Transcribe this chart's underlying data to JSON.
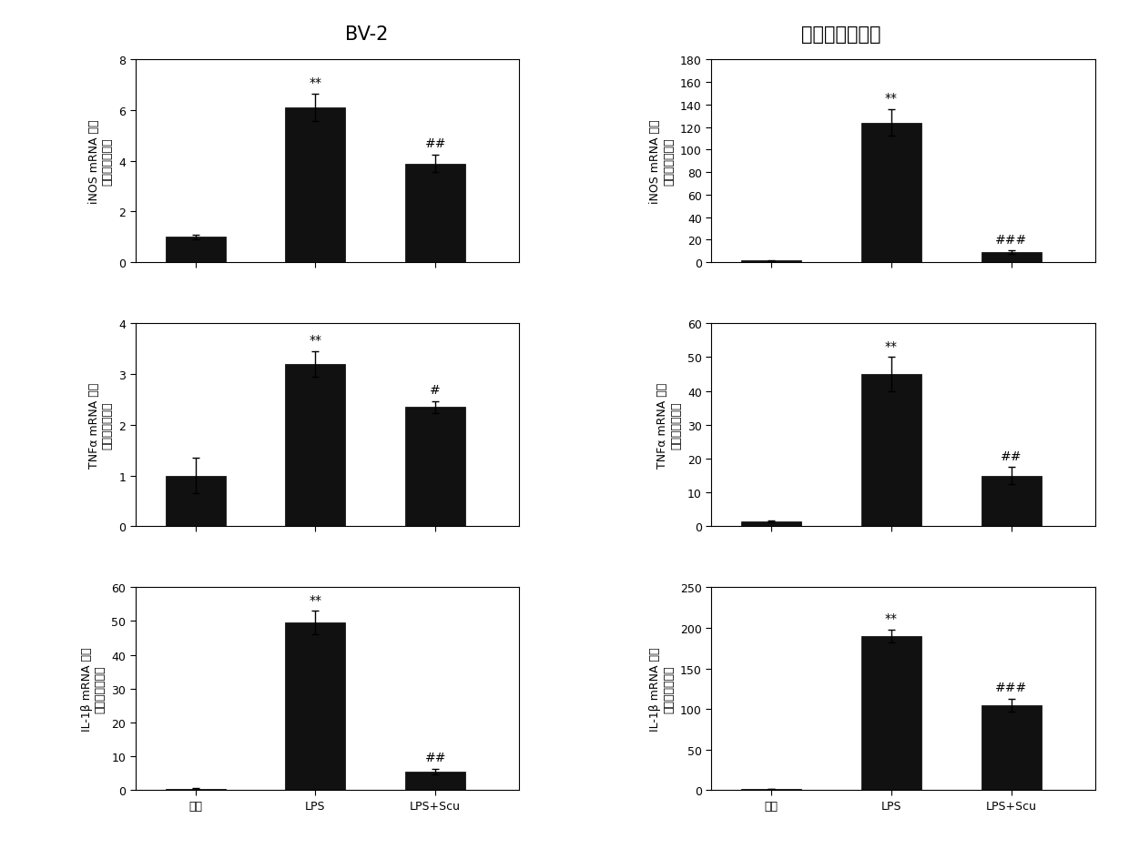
{
  "left_title": "BV-2",
  "right_title": "原代小胶质细胞",
  "x_labels": [
    "对照",
    "LPS",
    "LPS+Scu"
  ],
  "left_panels": [
    {
      "ylabel_main": "iNOS mRNA 表达",
      "ylabel_sub": "（对照的倍数）",
      "values": [
        1.0,
        6.1,
        3.9
      ],
      "errors": [
        0.08,
        0.55,
        0.35
      ],
      "ylim": [
        0,
        8
      ],
      "yticks": [
        0,
        2,
        4,
        6,
        8
      ],
      "sig_lps": "**",
      "sig_scu": "##"
    },
    {
      "ylabel_main": "TNFα mRNA 表达",
      "ylabel_sub": "（对照的倍数）",
      "values": [
        1.0,
        3.2,
        2.35
      ],
      "errors": [
        0.35,
        0.25,
        0.12
      ],
      "ylim": [
        0,
        4
      ],
      "yticks": [
        0,
        1,
        2,
        3,
        4
      ],
      "sig_lps": "**",
      "sig_scu": "#"
    },
    {
      "ylabel_main": "IL-1β mRNA 表达",
      "ylabel_sub": "（对照的倍数）",
      "values": [
        0.5,
        49.5,
        5.5
      ],
      "errors": [
        0.15,
        3.5,
        0.8
      ],
      "ylim": [
        0,
        60
      ],
      "yticks": [
        0,
        10,
        20,
        30,
        40,
        50,
        60
      ],
      "sig_lps": "**",
      "sig_scu": "##"
    }
  ],
  "right_panels": [
    {
      "ylabel_main": "iNOS mRNA 表达",
      "ylabel_sub": "（对照的倍数）",
      "values": [
        1.5,
        124.0,
        9.0
      ],
      "errors": [
        0.2,
        12.0,
        1.5
      ],
      "ylim": [
        0,
        180
      ],
      "yticks": [
        0,
        20,
        40,
        60,
        80,
        100,
        120,
        140,
        160,
        180
      ],
      "sig_lps": "**",
      "sig_scu": "###"
    },
    {
      "ylabel_main": "TNFα mRNA 表达",
      "ylabel_sub": "（对照的倍数）",
      "values": [
        1.5,
        45.0,
        15.0
      ],
      "errors": [
        0.2,
        5.0,
        2.5
      ],
      "ylim": [
        0,
        60
      ],
      "yticks": [
        0,
        10,
        20,
        30,
        40,
        50,
        60
      ],
      "sig_lps": "**",
      "sig_scu": "##"
    },
    {
      "ylabel_main": "IL-1β mRNA 表达",
      "ylabel_sub": "（对照犄倍数）",
      "values": [
        1.5,
        190.0,
        105.0
      ],
      "errors": [
        0.3,
        8.0,
        8.0
      ],
      "ylim": [
        0,
        250
      ],
      "yticks": [
        0,
        50,
        100,
        150,
        200,
        250
      ],
      "sig_lps": "**",
      "sig_scu": "###"
    }
  ],
  "bar_color": "#111111",
  "bar_width": 0.5,
  "bar_positions": [
    0.5,
    1.5,
    2.5
  ],
  "xlim": [
    0.0,
    3.2
  ],
  "title_fontsize": 15,
  "label_fontsize": 9,
  "tick_fontsize": 9,
  "sig_fontsize": 10
}
